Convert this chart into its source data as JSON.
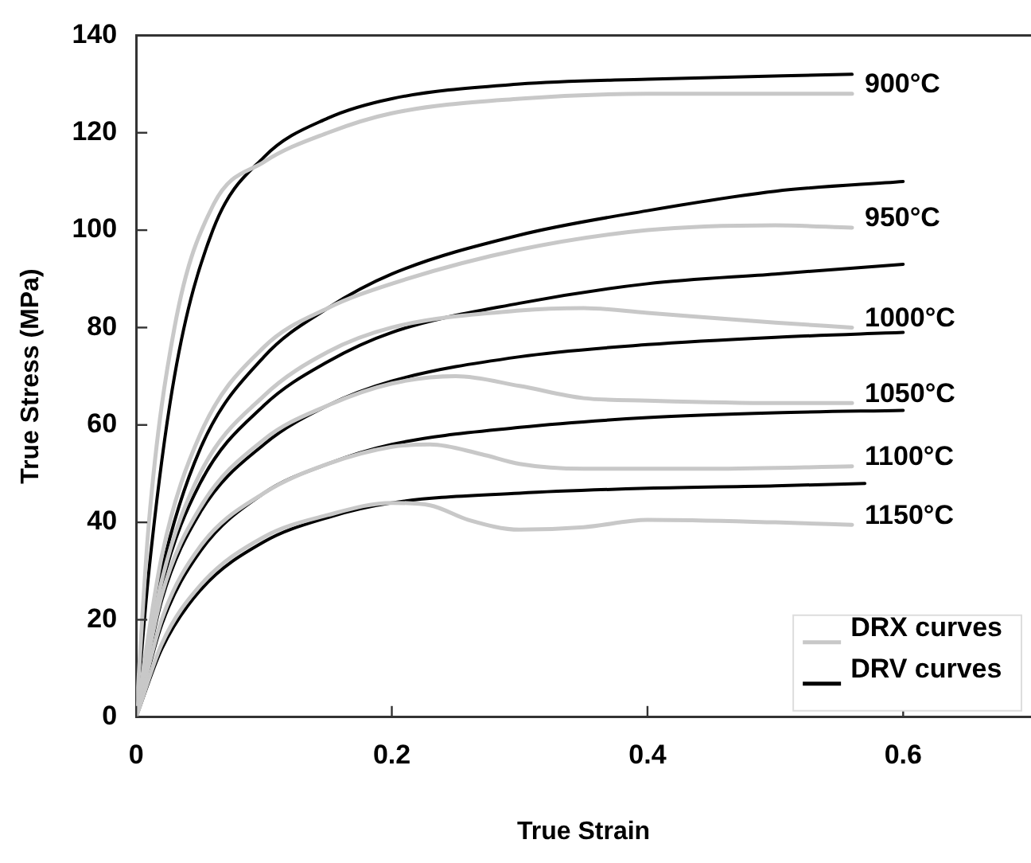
{
  "chart_data": {
    "type": "line",
    "xlabel": "True Strain",
    "ylabel": "True Stress (MPa)",
    "xlim": [
      0,
      0.7
    ],
    "xticks": [
      0,
      0.2,
      0.4,
      0.6
    ],
    "ylim": [
      0,
      140
    ],
    "yticks": [
      0,
      20,
      40,
      60,
      80,
      100,
      120,
      140
    ],
    "grid": false,
    "legend": "bottom right",
    "marker": "none",
    "line_style": "solid",
    "series": [
      {
        "name": "DRX curves",
        "color": "#c8c8c8",
        "x": [
          0,
          0.01,
          0.03,
          0.06,
          0.1,
          0.15,
          0.2,
          0.3,
          0.4,
          0.56
        ],
        "values": [
          0,
          40,
          80,
          105,
          114,
          120,
          124,
          127,
          128,
          128
        ]
      },
      {
        "color": "#c8c8c8",
        "x": [
          0,
          0.02,
          0.05,
          0.1,
          0.15,
          0.2,
          0.3,
          0.4,
          0.5,
          0.56
        ],
        "values": [
          0,
          33,
          58,
          76,
          84,
          89,
          96,
          100,
          101,
          100.5
        ]
      },
      {
        "color": "#c8c8c8",
        "x": [
          0,
          0.02,
          0.05,
          0.1,
          0.15,
          0.2,
          0.3,
          0.35,
          0.4,
          0.5,
          0.56
        ],
        "values": [
          0,
          28,
          50,
          66,
          75,
          80,
          83.5,
          84,
          83,
          81,
          80
        ]
      },
      {
        "color": "#c8c8c8",
        "x": [
          0,
          0.02,
          0.05,
          0.1,
          0.15,
          0.2,
          0.25,
          0.3,
          0.35,
          0.4,
          0.5,
          0.56
        ],
        "values": [
          0,
          25,
          43,
          57,
          64,
          68.5,
          70,
          68,
          65.5,
          65,
          64.5,
          64.5
        ]
      },
      {
        "color": "#c8c8c8",
        "x": [
          0,
          0.02,
          0.05,
          0.1,
          0.15,
          0.2,
          0.23,
          0.27,
          0.3,
          0.35,
          0.45,
          0.56
        ],
        "values": [
          0,
          20,
          35,
          46,
          52,
          55.5,
          56,
          54,
          52,
          51,
          51,
          51.5
        ]
      },
      {
        "color": "#c8c8c8",
        "x": [
          0,
          0.02,
          0.05,
          0.1,
          0.15,
          0.2,
          0.23,
          0.26,
          0.3,
          0.35,
          0.4,
          0.5,
          0.56
        ],
        "values": [
          0,
          15,
          27,
          37,
          41.5,
          44,
          43.5,
          40.5,
          38.5,
          39,
          40.5,
          40,
          39.5
        ]
      },
      {
        "name": "DRV curves",
        "color": "#000000",
        "x": [
          0,
          0.01,
          0.03,
          0.06,
          0.1,
          0.15,
          0.2,
          0.3,
          0.4,
          0.56
        ],
        "values": [
          0,
          30,
          70,
          100,
          115,
          123,
          127,
          130,
          131,
          132
        ]
      },
      {
        "color": "#000000",
        "x": [
          0,
          0.02,
          0.05,
          0.1,
          0.15,
          0.2,
          0.3,
          0.4,
          0.5,
          0.6
        ],
        "values": [
          0,
          30,
          55,
          74,
          84,
          91,
          99,
          104,
          108,
          110
        ]
      },
      {
        "color": "#000000",
        "x": [
          0,
          0.02,
          0.05,
          0.1,
          0.15,
          0.2,
          0.3,
          0.4,
          0.5,
          0.6
        ],
        "values": [
          0,
          27,
          48,
          64,
          73,
          79,
          85,
          89,
          91,
          93
        ]
      },
      {
        "color": "#000000",
        "x": [
          0,
          0.02,
          0.05,
          0.1,
          0.15,
          0.2,
          0.3,
          0.4,
          0.5,
          0.6
        ],
        "values": [
          0,
          24,
          42,
          56,
          64,
          69,
          74,
          76.5,
          78,
          79
        ]
      },
      {
        "color": "#000000",
        "x": [
          0,
          0.02,
          0.05,
          0.1,
          0.15,
          0.2,
          0.3,
          0.4,
          0.5,
          0.6
        ],
        "values": [
          0,
          19,
          34,
          46,
          52,
          56,
          59.5,
          61.5,
          62.5,
          63
        ]
      },
      {
        "color": "#000000",
        "x": [
          0,
          0.02,
          0.05,
          0.1,
          0.15,
          0.2,
          0.3,
          0.4,
          0.5,
          0.57
        ],
        "values": [
          0,
          14,
          26,
          36,
          41,
          44,
          46,
          47,
          47.5,
          48
        ]
      }
    ],
    "annotations": [
      "900°C",
      "950°C",
      "1000°C",
      "1050°C",
      "1100°C",
      "1150°C"
    ]
  }
}
